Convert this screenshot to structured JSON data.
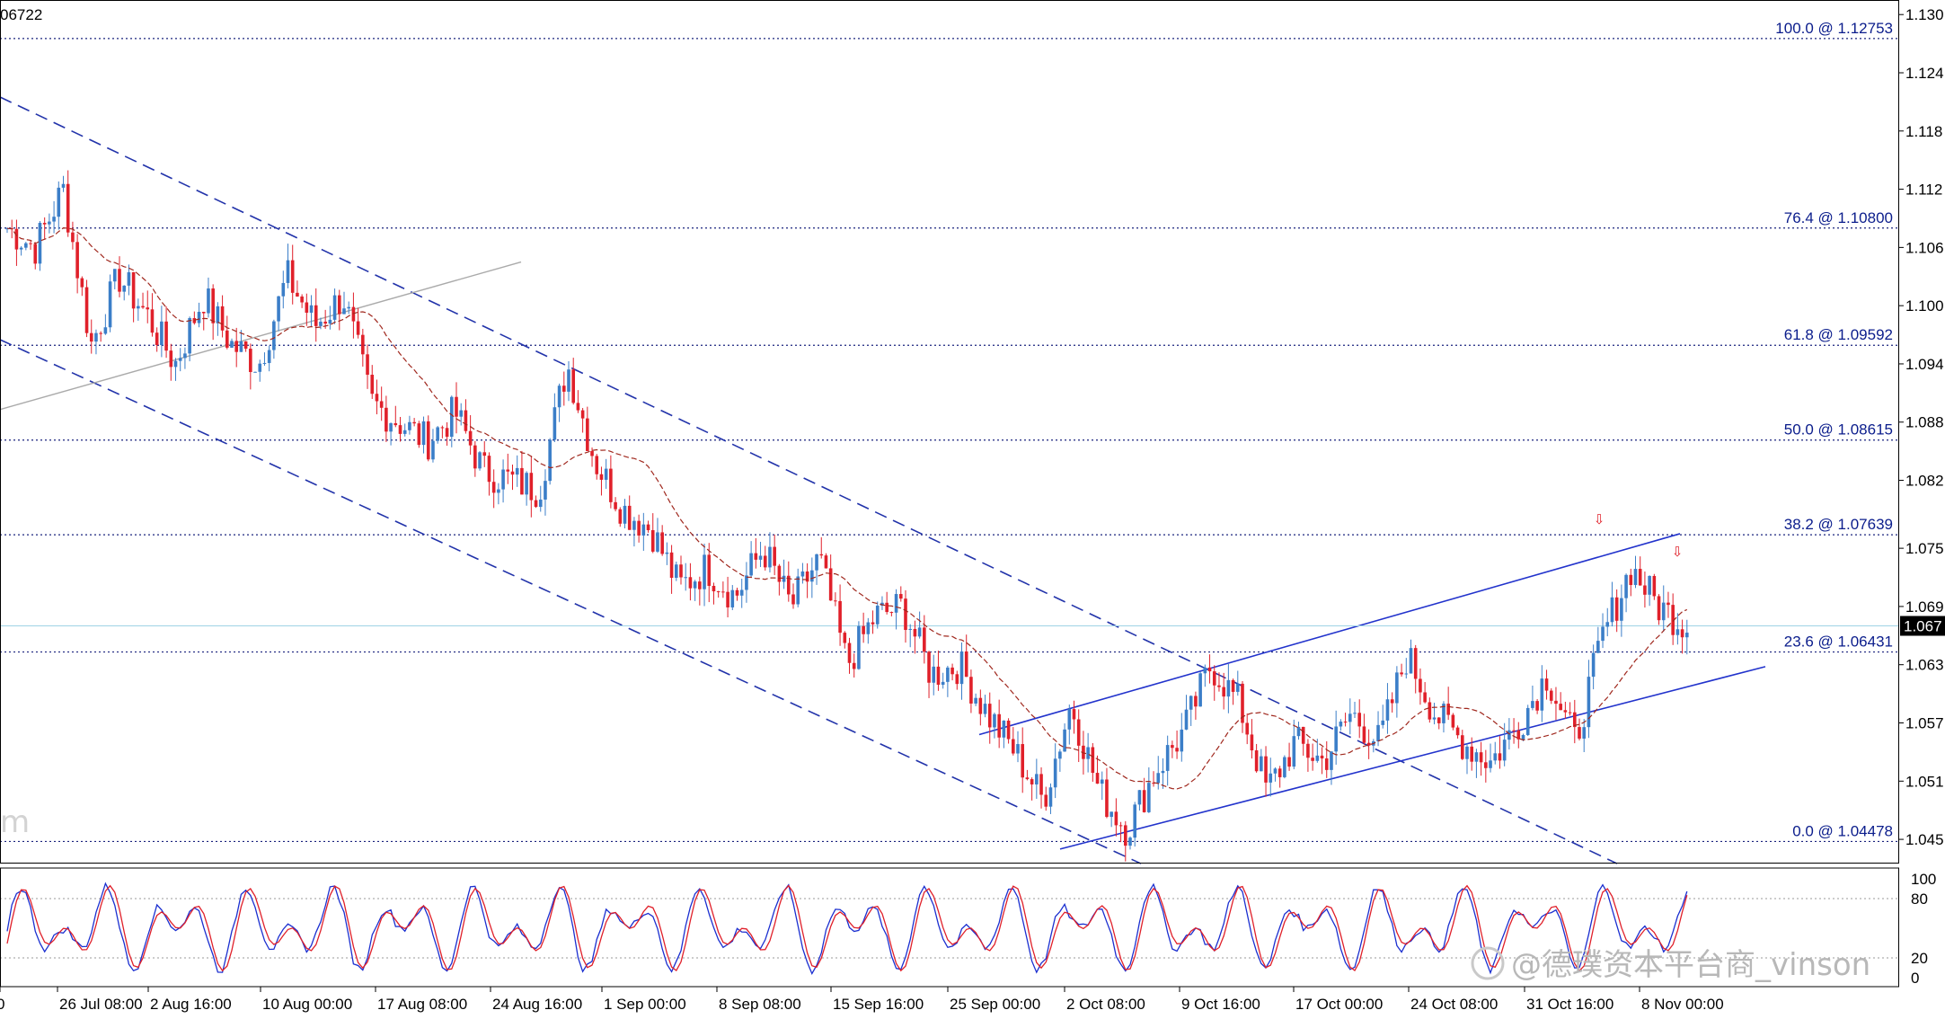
{
  "header": {
    "last_price_fragment": "06722"
  },
  "watermark": {
    "text": "@德璞资本平台商_vinson",
    "partial_left": "m"
  },
  "chart_data": {
    "type": "candlestick",
    "title": "",
    "current_price": "1.067",
    "ylim": [
      1.0426,
      1.1315
    ],
    "yticks": [
      "1.130",
      "1.124",
      "1.118",
      "1.112",
      "1.106",
      "1.100",
      "1.094",
      "1.088",
      "1.082",
      "1.075",
      "1.069",
      "1.063",
      "1.057",
      "1.051",
      "1.045"
    ],
    "xlabels": [
      "0",
      "26 Jul 08:00",
      "2 Aug 16:00",
      "10 Aug 00:00",
      "17 Aug 08:00",
      "24 Aug 16:00",
      "1 Sep 00:00",
      "8 Sep 08:00",
      "15 Sep 16:00",
      "25 Sep 00:00",
      "2 Oct 08:00",
      "9 Oct 16:00",
      "17 Oct 00:00",
      "24 Oct 08:00",
      "31 Oct 16:00",
      "8 Nov 00:00"
    ],
    "fibonacci": [
      {
        "label": "100.0 @ 1.12753",
        "price": 1.12753
      },
      {
        "label": "76.4 @ 1.10800",
        "price": 1.108
      },
      {
        "label": "61.8 @ 1.09592",
        "price": 1.09592
      },
      {
        "label": "50.0 @ 1.08615",
        "price": 1.08615
      },
      {
        "label": "38.2 @ 1.07639",
        "price": 1.07639
      },
      {
        "label": "23.6 @ 1.06431",
        "price": 1.06431
      },
      {
        "label": "0.0 @ 1.04478",
        "price": 1.04478
      }
    ],
    "close_path": [
      1.108,
      1.106,
      1.112,
      1.096,
      1.103,
      1.099,
      1.094,
      1.101,
      1.096,
      1.094,
      1.103,
      1.098,
      1.101,
      1.09,
      1.088,
      1.086,
      1.089,
      1.083,
      1.082,
      1.081,
      1.094,
      1.084,
      1.079,
      1.077,
      1.071,
      1.073,
      1.07,
      1.075,
      1.069,
      1.074,
      1.063,
      1.068,
      1.069,
      1.062,
      1.063,
      1.058,
      1.054,
      1.049,
      1.059,
      1.05,
      1.046,
      1.052,
      1.056,
      1.063,
      1.059,
      1.05,
      1.055,
      1.053,
      1.058,
      1.055,
      1.064,
      1.058,
      1.055,
      1.053,
      1.057,
      1.062,
      1.055,
      1.066,
      1.073,
      1.069,
      1.067
    ],
    "oscillator": {
      "levels": [
        "100",
        "80",
        "20",
        "0"
      ]
    },
    "markers": [
      "⇩",
      "⇩"
    ]
  }
}
